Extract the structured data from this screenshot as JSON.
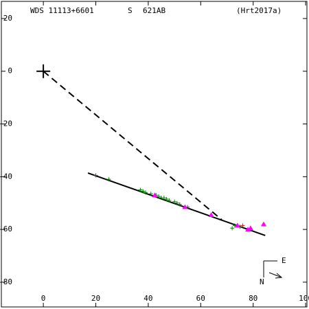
{
  "chart_data": {
    "type": "scatter",
    "title": "WDS 11113+6601",
    "subtitle": "S",
    "pair": "621AB",
    "reference": "(Hrt2017a)",
    "compass": {
      "east": "E",
      "north": "N"
    },
    "xlim": [
      -16,
      100.5
    ],
    "ylim": [
      -89.4,
      26.5
    ],
    "xticks": [
      0,
      20,
      40,
      60,
      80,
      100
    ],
    "yticks": [
      20,
      0,
      -20,
      -40,
      -60,
      -80
    ],
    "primary": {
      "x": 0,
      "y": 0
    },
    "lines": [
      {
        "style": "dashed",
        "color": "#000000",
        "x": [
          0,
          68
        ],
        "values": [
          0,
          -56.3
        ]
      },
      {
        "style": "solid",
        "color": "#000000",
        "x": [
          17,
          84.6
        ],
        "values": [
          -38.6,
          -62.3
        ]
      }
    ],
    "series": [
      {
        "marker": "plus",
        "color": "#008000",
        "x": [
          20,
          25,
          37,
          38,
          39,
          41,
          43,
          44,
          45,
          46,
          47,
          48,
          50,
          51,
          52,
          55,
          72,
          73,
          75
        ],
        "values": [
          -39.5,
          -41,
          -45,
          -45.5,
          -46,
          -46.5,
          -47,
          -47.5,
          -48,
          -48,
          -48.5,
          -49,
          -49.5,
          -50,
          -50.5,
          -51.5,
          -59.5,
          -58.5,
          -59
        ]
      },
      {
        "marker": "triangle",
        "color": "#ff00ff",
        "x": [
          42.5,
          54,
          64,
          74,
          78,
          79,
          84
        ],
        "values": [
          -47,
          -51.5,
          -54.5,
          -58.5,
          -60,
          -59.5,
          -58
        ]
      },
      {
        "marker": "plus",
        "color": "#ff0000",
        "x": [
          76
        ],
        "values": [
          -58.5
        ]
      }
    ]
  }
}
